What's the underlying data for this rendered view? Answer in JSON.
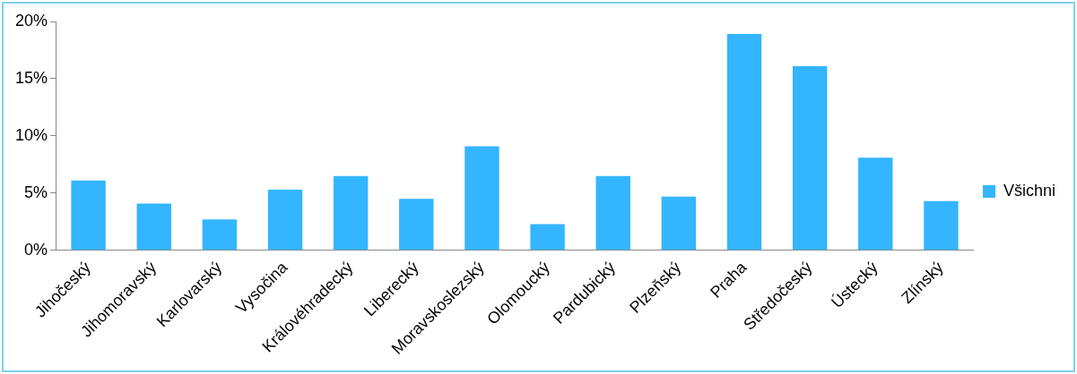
{
  "chart_data": {
    "type": "bar",
    "categories": [
      "Jihočeský",
      "Jihomoravský",
      "Karlovarský",
      "Vysočina",
      "Královéhradecký",
      "Liberecký",
      "Moravskoslezský",
      "Olomoucký",
      "Pardubický",
      "Plzeňský",
      "Praha",
      "Středočeský",
      "Ústecký",
      "Zlínský"
    ],
    "series": [
      {
        "name": "Všichni",
        "color": "#33b5ff",
        "values": [
          6.1,
          4.1,
          2.7,
          5.3,
          6.5,
          4.5,
          9.1,
          2.3,
          6.5,
          4.7,
          18.9,
          16.1,
          8.1,
          4.3
        ]
      }
    ],
    "ylim": [
      0,
      20
    ],
    "yticks": [
      {
        "value": 0,
        "label": "0%"
      },
      {
        "value": 5,
        "label": "5%"
      },
      {
        "value": 10,
        "label": "10%"
      },
      {
        "value": 15,
        "label": "15%"
      },
      {
        "value": 20,
        "label": "20%"
      }
    ],
    "grid": false,
    "legend": "right"
  }
}
